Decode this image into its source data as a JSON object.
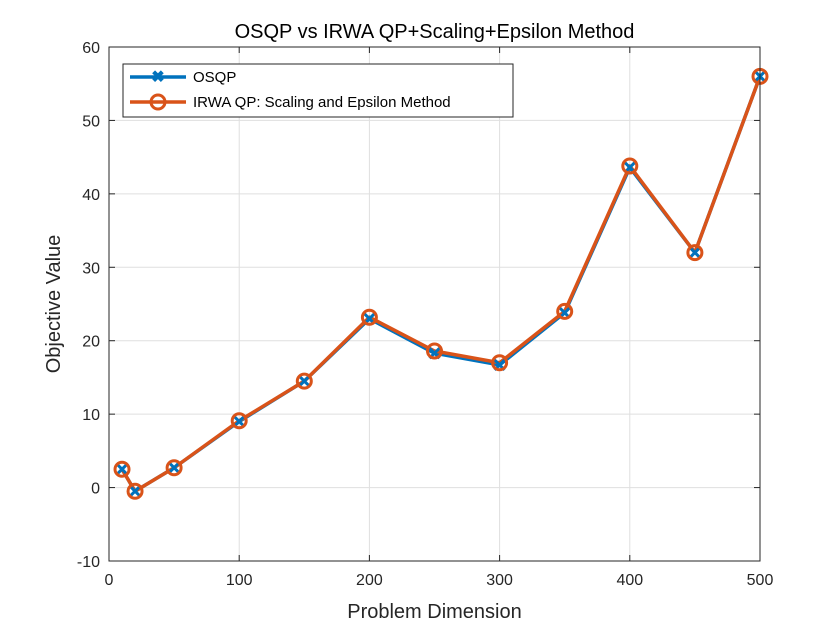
{
  "chart_data": {
    "type": "line",
    "title": "OSQP vs IRWA QP+Scaling+Epsilon Method",
    "xlabel": "Problem Dimension",
    "ylabel": "Objective Value",
    "xlim": [
      0,
      500
    ],
    "ylim": [
      -10,
      60
    ],
    "xticks": [
      0,
      100,
      200,
      300,
      400,
      500
    ],
    "yticks": [
      -10,
      0,
      10,
      20,
      30,
      40,
      50,
      60
    ],
    "grid": true,
    "legend_position": "top-left",
    "x": [
      10,
      20,
      50,
      100,
      150,
      200,
      250,
      300,
      350,
      400,
      450,
      500
    ],
    "series": [
      {
        "name": "OSQP",
        "color": "#0072BD",
        "marker": "x",
        "values": [
          2.5,
          -0.5,
          2.7,
          9.0,
          14.5,
          23.0,
          18.3,
          16.7,
          23.8,
          43.6,
          32.0,
          56.0
        ]
      },
      {
        "name": "IRWA QP: Scaling and Epsilon Method",
        "color": "#D95319",
        "marker": "o",
        "values": [
          2.5,
          -0.5,
          2.7,
          9.1,
          14.5,
          23.2,
          18.6,
          17.0,
          24.0,
          43.8,
          32.0,
          56.0
        ]
      }
    ]
  }
}
